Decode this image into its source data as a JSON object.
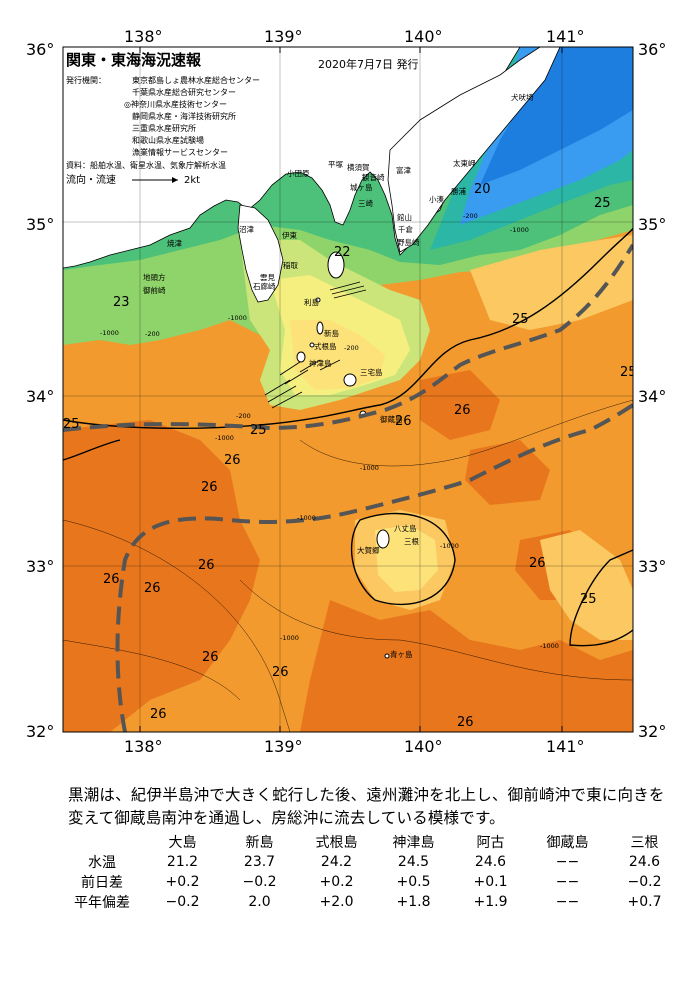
{
  "title": "関東・東海海況速報",
  "issue_date": "2020年7月7日 発行",
  "issuers_label": "発行機関：",
  "issuers": [
    "東京都島しょ農林水産総合センター",
    "千葉県水産総合研究センター",
    "◎神奈川県水産技術センター",
    "静岡県水産・海洋技術研究所",
    "三重県水産研究所",
    "和歌山県水産試験場",
    "漁業情報サービスセンター"
  ],
  "source": "資料：船舶水温、衛星水温、気象庁解析水温",
  "current_legend": {
    "label": "流向・流速",
    "scale": "2kt"
  },
  "axes": {
    "lon_top": [
      "138°",
      "139°",
      "140°",
      "141°"
    ],
    "lon_bottom": [
      "138°",
      "139°",
      "140°",
      "141°"
    ],
    "lat_left": [
      "36°",
      "35°",
      "34°",
      "33°",
      "32°"
    ],
    "lat_right": [
      "36°",
      "35°",
      "34°",
      "33°",
      "32°"
    ]
  },
  "place_names": [
    "犬吠埼",
    "太東岬",
    "勝浦",
    "小湊",
    "千倉",
    "館山",
    "野島崎",
    "富津",
    "観音崎",
    "城ヶ島",
    "三崎",
    "横須賀",
    "平塚",
    "小田原",
    "伊東",
    "稲取",
    "沼津",
    "焼津",
    "地頭方",
    "御前崎",
    "雲見",
    "石廊崎",
    "利島",
    "新島",
    "式根島",
    "神津島",
    "三宅島",
    "御蔵島",
    "八丈島",
    "三根",
    "大賀郷",
    "青ヶ島"
  ],
  "temperature_labels": [
    "20",
    "22",
    "23",
    "25",
    "25",
    "25",
    "25",
    "25",
    "25",
    "26",
    "26",
    "26",
    "26",
    "26",
    "26",
    "26",
    "26",
    "26",
    "26",
    "26",
    "26"
  ],
  "depth_labels": [
    "-1000",
    "-200",
    "-200",
    "-1000",
    "-200",
    "-1000",
    "-200",
    "-1000",
    "-1000",
    "-1000",
    "-1000",
    "-1000",
    "-1000"
  ],
  "summary": "黒潮は、紀伊半島沖で大きく蛇行した後、遠州灘沖を北上し、御前崎沖で東に向きを変えて御蔵島南沖を通過し、房総沖に流去している模様です。",
  "observation_table": {
    "columns": [
      "大島",
      "新島",
      "式根島",
      "神津島",
      "阿古",
      "御蔵島",
      "三根"
    ],
    "rows": [
      {
        "label": "水温",
        "values": [
          "21.2",
          "23.7",
          "24.2",
          "24.5",
          "24.6",
          "−−",
          "24.6"
        ]
      },
      {
        "label": "前日差",
        "values": [
          "+0.2",
          "−0.2",
          "+0.2",
          "+0.5",
          "+0.1",
          "−−",
          "−0.2"
        ]
      },
      {
        "label": "平年偏差",
        "values": [
          "−0.2",
          "2.0",
          "+2.0",
          "+1.8",
          "+1.9",
          "−−",
          "+0.7"
        ]
      }
    ]
  },
  "colors": {
    "sea_warm_dark": "#e8761c",
    "sea_warm": "#f29a2e",
    "sea_26": "#f7b143",
    "sea_25": "#fbc862",
    "sea_24": "#fde27a",
    "sea_23": "#f5ef80",
    "sea_22": "#cbe57a",
    "sea_21": "#8fd46a",
    "sea_20": "#4dc07a",
    "sea_19": "#2bb6a6",
    "sea_cold": "#1e7ee0",
    "sea_cold2": "#3a9cf0",
    "land": "#ffffff",
    "kuroshio_axis": "#555555"
  }
}
